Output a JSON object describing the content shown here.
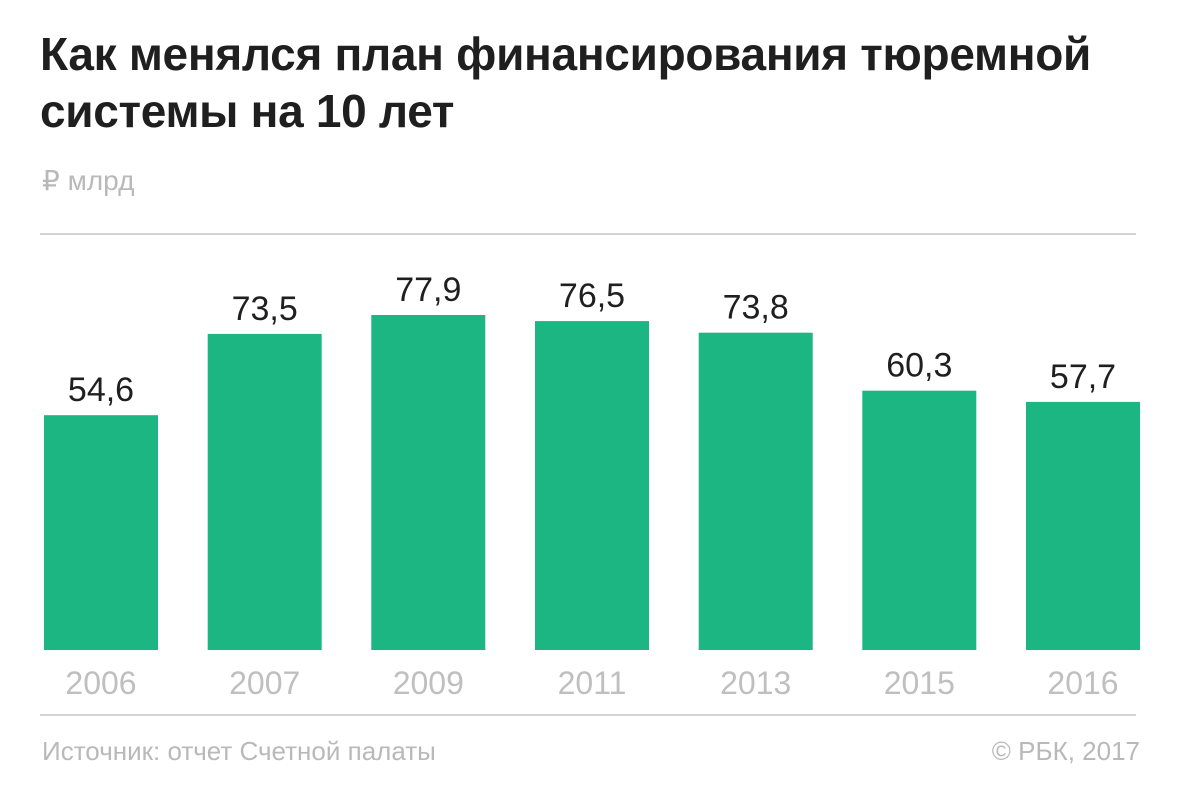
{
  "chart_data": {
    "type": "bar",
    "title": "Как менялся план финансирования тюремной системы на 10 лет",
    "unit_label": "₽ млрд",
    "categories": [
      "2006",
      "2007",
      "2009",
      "2011",
      "2013",
      "2015",
      "2016"
    ],
    "values": [
      54.6,
      73.5,
      77.9,
      76.5,
      73.8,
      60.3,
      57.7
    ],
    "value_labels": [
      "54,6",
      "73,5",
      "77,9",
      "76,5",
      "73,8",
      "60,3",
      "57,7"
    ],
    "xlabel": "",
    "ylabel": "",
    "ylim": [
      0,
      80
    ],
    "grid": false,
    "legend": "none",
    "bar_color": "#1bb682"
  },
  "footer": {
    "source": "Источник: отчет Счетной палаты",
    "copyright": "© РБК, 2017"
  }
}
